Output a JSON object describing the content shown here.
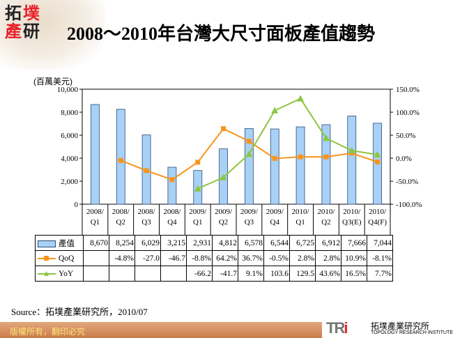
{
  "header": {
    "logo_text": "拓墣產研",
    "title": "2008～2010年台灣大尺寸面板產值趨勢"
  },
  "chart_data": {
    "type": "bar+line",
    "title": "2008～2010年台灣大尺寸面板產值趨勢",
    "ylabel": "(百萬美元)",
    "ylim": [
      0,
      10000
    ],
    "yticks": [
      "0",
      "2,000",
      "4,000",
      "6,000",
      "8,000",
      "10,000"
    ],
    "y2lim": [
      -100,
      150
    ],
    "y2ticks": [
      "-100.0%",
      "-50.0%",
      "0.0%",
      "50.0%",
      "100.0%",
      "150.0%"
    ],
    "categories": [
      "2008/Q1",
      "2008/Q2",
      "2008/Q3",
      "2008/Q4",
      "2009/Q1",
      "2009/Q2",
      "2009/Q3",
      "2009/Q4",
      "2010/Q1",
      "2010/Q2",
      "2010/Q3(E)",
      "2010/Q4(F)"
    ],
    "series": [
      {
        "name": "產值",
        "type": "bar",
        "axis": "left",
        "color": "#a9d0f5",
        "values": [
          8670,
          8254,
          6029,
          3215,
          2931,
          4812,
          6578,
          6544,
          6725,
          6912,
          7666,
          7044
        ],
        "labels": [
          "8,670",
          "8,254",
          "6,029",
          "3,215",
          "2,931",
          "4,812",
          "6,578",
          "6,544",
          "6,725",
          "6,912",
          "7,666",
          "7,044"
        ]
      },
      {
        "name": "QoQ",
        "type": "line",
        "axis": "right",
        "color": "#f7941d",
        "values": [
          null,
          -4.8,
          -27.0,
          -46.7,
          -8.8,
          64.2,
          36.7,
          -0.5,
          2.8,
          2.8,
          10.9,
          -8.1
        ],
        "labels": [
          "",
          "-4.8%",
          "-27.0",
          "-46.7",
          "-8.8%",
          "64.2%",
          "36.7%",
          "-0.5%",
          "2.8%",
          "2.8%",
          "10.9%",
          "-8.1%"
        ]
      },
      {
        "name": "YoY",
        "type": "line",
        "axis": "right",
        "color": "#8dc63f",
        "values": [
          null,
          null,
          null,
          null,
          -66.2,
          -41.7,
          9.1,
          103.6,
          129.5,
          43.6,
          16.5,
          7.7
        ],
        "labels": [
          "",
          "",
          "",
          "",
          "-66.2",
          "-41.7",
          "9.1%",
          "103.6",
          "129.5",
          "43.6%",
          "16.5%",
          "7.7%"
        ]
      }
    ],
    "grid": false,
    "legend": "data-table"
  },
  "source": "Source：拓墣產業研究所，2010/07",
  "footer": {
    "copyright": "版權所有，翻印必究",
    "brand": "TRi",
    "brand_cn": "拓墣產業研究所",
    "brand_en": "TOPOLOGY RESEARCH INSTITUTE"
  }
}
